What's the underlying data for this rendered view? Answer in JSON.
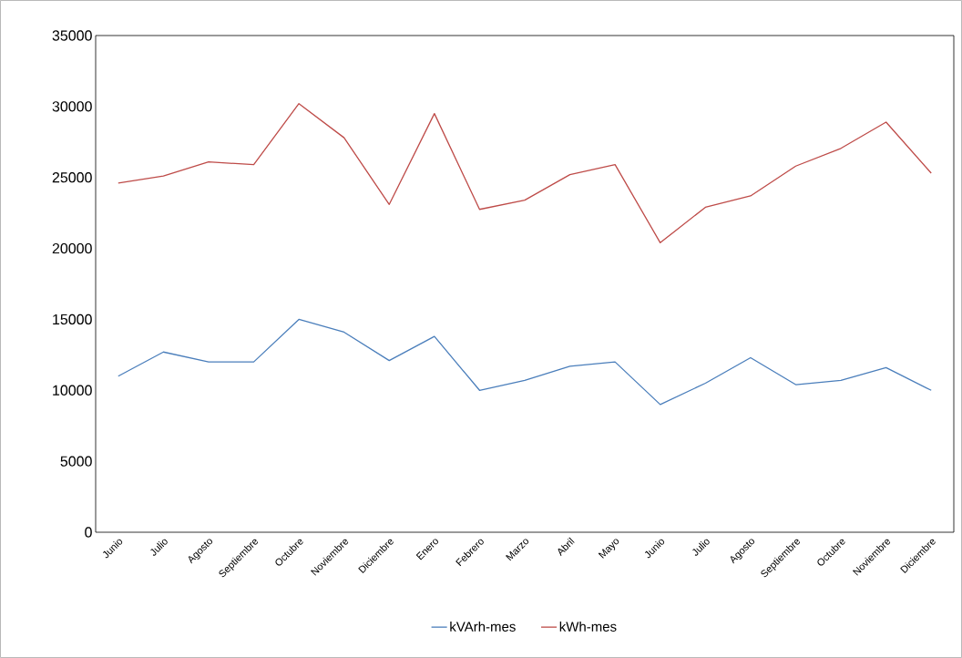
{
  "chart_data": {
    "type": "line",
    "categories": [
      "Junio",
      "Julio",
      "Agosto",
      "Septiembre",
      "Octubre",
      "Noviembre",
      "Diciembre",
      "Enero",
      "Febrero",
      "Marzo",
      "Abril",
      "Mayo",
      "Junio",
      "Julio",
      "Agosto",
      "Septiembre",
      "Octubre",
      "Noviembre",
      "Diciembre"
    ],
    "series": [
      {
        "name": "kVArh-mes",
        "color": "#4a7ebb",
        "values": [
          11000,
          12700,
          12000,
          12000,
          15000,
          14100,
          12100,
          13800,
          10000,
          10700,
          11700,
          12000,
          9000,
          10500,
          12300,
          10400,
          10700,
          11600,
          10000
        ]
      },
      {
        "name": "kWh-mes",
        "color": "#be4b48",
        "values": [
          24600,
          25100,
          26100,
          25900,
          30200,
          27800,
          23100,
          29500,
          22750,
          23400,
          25200,
          25900,
          20400,
          22900,
          23700,
          25800,
          27050,
          28900,
          25300
        ]
      }
    ],
    "ylim": [
      0,
      35000
    ],
    "yticks": [
      0,
      5000,
      10000,
      15000,
      20000,
      25000,
      30000,
      35000
    ],
    "grid": false,
    "legend": "bottom",
    "marker": "none",
    "line_style": "solid"
  }
}
